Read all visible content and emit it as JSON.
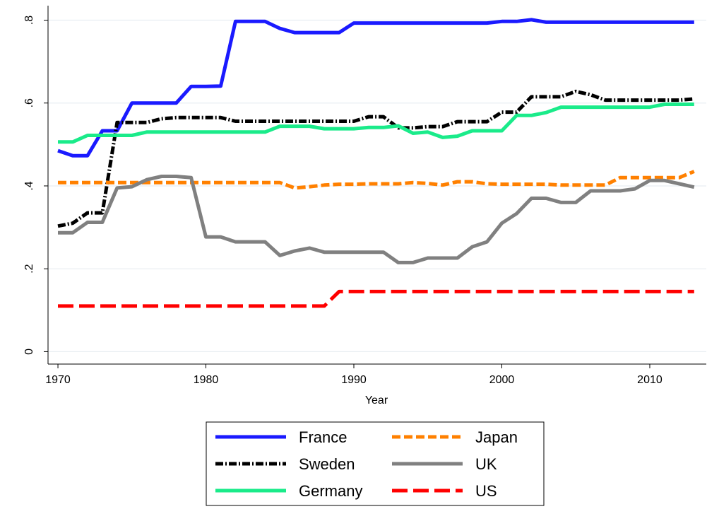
{
  "chart_data": {
    "type": "line",
    "x_label": "Year",
    "x": [
      1970,
      1971,
      1972,
      1973,
      1974,
      1975,
      1976,
      1977,
      1978,
      1979,
      1980,
      1981,
      1982,
      1983,
      1984,
      1985,
      1986,
      1987,
      1988,
      1989,
      1990,
      1991,
      1992,
      1993,
      1994,
      1995,
      1996,
      1997,
      1998,
      1999,
      2000,
      2001,
      2002,
      2003,
      2004,
      2005,
      2006,
      2007,
      2008,
      2009,
      2010,
      2011,
      2012,
      2013
    ],
    "xlim": [
      1969.33,
      2013.82
    ],
    "xticks": [
      1970,
      1980,
      1990,
      2000,
      2010
    ],
    "ylim": [
      -0.03,
      0.835
    ],
    "yticks": [
      0,
      {
        "value": 0.2,
        "label": ".2"
      },
      {
        "value": 0.4,
        "label": ".4"
      },
      {
        "value": 0.6,
        "label": ".6"
      },
      {
        "value": 0.8,
        "label": ".8"
      }
    ],
    "grid": true,
    "legend": "bottom",
    "series": [
      {
        "name": "France",
        "color": "#1a1aff",
        "style": "solid",
        "values": [
          0.485,
          0.473,
          0.473,
          0.533,
          0.533,
          0.6,
          0.6,
          0.6,
          0.6,
          0.64,
          0.64,
          0.641,
          0.797,
          0.797,
          0.797,
          0.78,
          0.77,
          0.77,
          0.77,
          0.77,
          0.793,
          0.793,
          0.793,
          0.793,
          0.793,
          0.793,
          0.793,
          0.793,
          0.793,
          0.793,
          0.797,
          0.797,
          0.801,
          0.795,
          0.795,
          0.795,
          0.795,
          0.795,
          0.795,
          0.795,
          0.795,
          0.795,
          0.795,
          0.795
        ]
      },
      {
        "name": "Sweden",
        "color": "#000000",
        "style": "dashdot",
        "values": [
          0.303,
          0.31,
          0.335,
          0.335,
          0.553,
          0.553,
          0.553,
          0.562,
          0.565,
          0.565,
          0.565,
          0.565,
          0.556,
          0.556,
          0.556,
          0.556,
          0.556,
          0.556,
          0.556,
          0.556,
          0.556,
          0.567,
          0.567,
          0.54,
          0.54,
          0.543,
          0.543,
          0.555,
          0.555,
          0.555,
          0.578,
          0.578,
          0.615,
          0.615,
          0.615,
          0.628,
          0.62,
          0.607,
          0.607,
          0.607,
          0.607,
          0.607,
          0.607,
          0.61
        ]
      },
      {
        "name": "Germany",
        "color": "#1aeb8a",
        "style": "solid",
        "values": [
          0.506,
          0.506,
          0.522,
          0.522,
          0.522,
          0.522,
          0.53,
          0.53,
          0.53,
          0.53,
          0.53,
          0.53,
          0.53,
          0.53,
          0.53,
          0.544,
          0.544,
          0.544,
          0.538,
          0.538,
          0.538,
          0.541,
          0.541,
          0.545,
          0.527,
          0.53,
          0.517,
          0.52,
          0.533,
          0.533,
          0.533,
          0.57,
          0.57,
          0.577,
          0.59,
          0.59,
          0.59,
          0.59,
          0.59,
          0.59,
          0.59,
          0.597,
          0.597,
          0.597
        ]
      },
      {
        "name": "Japan",
        "color": "#ff8000",
        "style": "dash",
        "values": [
          0.408,
          0.408,
          0.408,
          0.408,
          0.408,
          0.408,
          0.408,
          0.408,
          0.408,
          0.408,
          0.408,
          0.408,
          0.408,
          0.408,
          0.408,
          0.408,
          0.395,
          0.398,
          0.402,
          0.404,
          0.404,
          0.405,
          0.405,
          0.405,
          0.408,
          0.406,
          0.402,
          0.41,
          0.41,
          0.405,
          0.404,
          0.404,
          0.404,
          0.404,
          0.402,
          0.402,
          0.402,
          0.402,
          0.42,
          0.42,
          0.42,
          0.42,
          0.42,
          0.435
        ]
      },
      {
        "name": "UK",
        "color": "#808080",
        "style": "solid",
        "values": [
          0.287,
          0.287,
          0.312,
          0.312,
          0.395,
          0.398,
          0.415,
          0.423,
          0.423,
          0.42,
          0.277,
          0.277,
          0.265,
          0.265,
          0.265,
          0.232,
          0.243,
          0.25,
          0.24,
          0.24,
          0.24,
          0.24,
          0.24,
          0.215,
          0.215,
          0.226,
          0.226,
          0.226,
          0.253,
          0.265,
          0.31,
          0.333,
          0.37,
          0.37,
          0.36,
          0.36,
          0.388,
          0.388,
          0.388,
          0.393,
          0.413,
          0.413,
          0.405,
          0.397
        ]
      },
      {
        "name": "US",
        "color": "#ff0000",
        "style": "longdash",
        "values": [
          0.11,
          0.11,
          0.11,
          0.11,
          0.11,
          0.11,
          0.11,
          0.11,
          0.11,
          0.11,
          0.11,
          0.11,
          0.11,
          0.11,
          0.11,
          0.11,
          0.11,
          0.11,
          0.11,
          0.145,
          0.145,
          0.145,
          0.145,
          0.145,
          0.145,
          0.145,
          0.145,
          0.145,
          0.145,
          0.145,
          0.145,
          0.145,
          0.145,
          0.145,
          0.145,
          0.145,
          0.145,
          0.145,
          0.145,
          0.145,
          0.145,
          0.145,
          0.145,
          0.145
        ]
      }
    ]
  }
}
